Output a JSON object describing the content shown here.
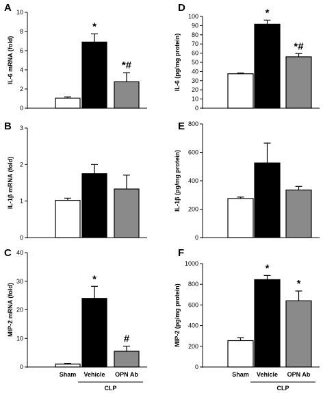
{
  "colors": {
    "sham": "#ffffff",
    "vehicle": "#000000",
    "opn_ab": "#8a8a8a",
    "outline": "#000000"
  },
  "group_label": "CLP",
  "chart_data": [
    {
      "type": "bar",
      "letter": "A",
      "ylabel": "IL-6 mRNA (fold)",
      "categories": [
        "Sham",
        "Vehicle",
        "OPN Ab"
      ],
      "values": [
        1.05,
        6.9,
        2.75
      ],
      "errors": [
        0.12,
        0.85,
        0.95
      ],
      "annotations": [
        "",
        "*",
        "*#"
      ],
      "ylim": [
        0,
        10
      ],
      "yticks": [
        0,
        2,
        4,
        6,
        8,
        10
      ]
    },
    {
      "type": "bar",
      "letter": "B",
      "ylabel": "IL-1β mRNA (fold)",
      "categories": [
        "Sham",
        "Vehicle",
        "OPN Ab"
      ],
      "values": [
        1.02,
        1.75,
        1.33
      ],
      "errors": [
        0.06,
        0.25,
        0.38
      ],
      "annotations": [
        "",
        "",
        ""
      ],
      "ylim": [
        0,
        3
      ],
      "yticks": [
        0,
        1,
        2,
        3
      ]
    },
    {
      "type": "bar",
      "letter": "C",
      "ylabel": "MIP-2 mRNA (fold)",
      "categories": [
        "Sham",
        "Vehicle",
        "OPN Ab"
      ],
      "values": [
        1.0,
        24.0,
        5.5
      ],
      "errors": [
        0.3,
        4.2,
        1.8
      ],
      "annotations": [
        "",
        "*",
        "#"
      ],
      "ylim": [
        0,
        40
      ],
      "yticks": [
        0,
        10,
        20,
        30,
        40
      ]
    },
    {
      "type": "bar",
      "letter": "D",
      "ylabel": "IL-6 (pg/mg protein)",
      "categories": [
        "Sham",
        "Vehicle",
        "OPN Ab"
      ],
      "values": [
        37.5,
        91.5,
        56.0
      ],
      "errors": [
        0.8,
        4.5,
        3.5
      ],
      "annotations": [
        "",
        "*",
        "*#"
      ],
      "ylim": [
        0,
        100
      ],
      "yticks": [
        0,
        10,
        20,
        30,
        40,
        50,
        60,
        70,
        80,
        90,
        100
      ]
    },
    {
      "type": "bar",
      "letter": "E",
      "ylabel": "IL-1β (pg/mg protein)",
      "categories": [
        "Sham",
        "Vehicle",
        "OPN Ab"
      ],
      "values": [
        275,
        525,
        335
      ],
      "errors": [
        10,
        140,
        25
      ],
      "annotations": [
        "",
        "",
        ""
      ],
      "ylim": [
        0,
        800
      ],
      "yticks": [
        0,
        200,
        400,
        600,
        800
      ]
    },
    {
      "type": "bar",
      "letter": "F",
      "ylabel": "MIP-2 (pg/mg protein)",
      "categories": [
        "Sham",
        "Vehicle",
        "OPN Ab"
      ],
      "values": [
        255,
        845,
        640
      ],
      "errors": [
        28,
        40,
        95
      ],
      "annotations": [
        "",
        "*",
        "*"
      ],
      "ylim": [
        0,
        1000
      ],
      "yticks": [
        0,
        200,
        400,
        600,
        800,
        1000
      ]
    }
  ]
}
